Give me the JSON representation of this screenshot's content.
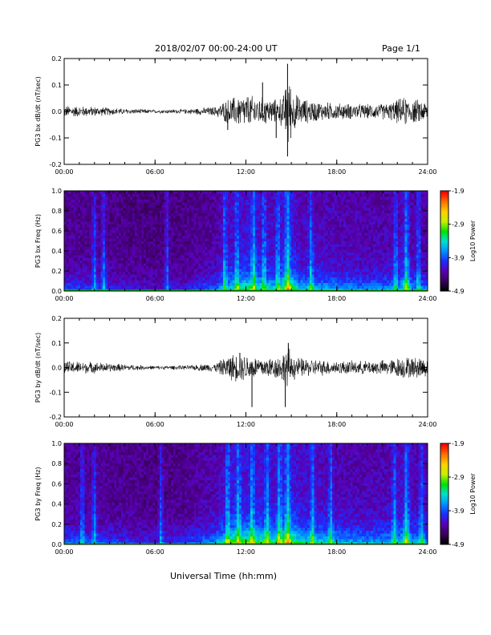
{
  "header": {
    "title": "2018/02/07  00:00-24:00 UT",
    "page": "Page 1/1"
  },
  "xlabel": "Universal Time (hh:mm)",
  "colors": {
    "trace": "#000000",
    "colormap": [
      "#000000",
      "#3a005c",
      "#5a00b4",
      "#1c2cff",
      "#0090ff",
      "#00e0d0",
      "#00e000",
      "#c8f000",
      "#ffd000",
      "#ff7000",
      "#ff0000"
    ]
  },
  "chart_data": [
    {
      "type": "line",
      "panel": "bx",
      "ylabel": "PG3 bx dB/dt (nT/sec)",
      "xlim": [
        0,
        24
      ],
      "ylim": [
        -0.2,
        0.2
      ],
      "xticks": [
        "00:00",
        "06:00",
        "12:00",
        "18:00",
        "24:00"
      ],
      "yticks": [
        "-0.2",
        "-0.1",
        "0.0",
        "0.1",
        "0.2"
      ],
      "grid": false,
      "envelope": {
        "hours": [
          0,
          2,
          4,
          6,
          8,
          10,
          10.5,
          11,
          12,
          13,
          14,
          14.5,
          14.8,
          15,
          15.5,
          16,
          17,
          18,
          20,
          21.5,
          22,
          22.5,
          23,
          23.5,
          24
        ],
        "amplitude": [
          0.025,
          0.02,
          0.012,
          0.008,
          0.01,
          0.02,
          0.04,
          0.06,
          0.07,
          0.06,
          0.05,
          0.07,
          0.17,
          0.1,
          0.06,
          0.05,
          0.04,
          0.035,
          0.03,
          0.035,
          0.05,
          0.06,
          0.05,
          0.05,
          0.04
        ]
      },
      "spikes": [
        {
          "t": 14.75,
          "y": 0.18
        },
        {
          "t": 14.75,
          "y": -0.17
        },
        {
          "t": 14.0,
          "y": -0.1
        },
        {
          "t": 10.8,
          "y": -0.07
        },
        {
          "t": 13.1,
          "y": 0.11
        }
      ]
    },
    {
      "type": "heatmap",
      "panel": "bx",
      "ylabel": "PG3 bx Freq (Hz)",
      "xlim": [
        0,
        24
      ],
      "ylim": [
        0,
        1
      ],
      "xticks": [
        "00:00",
        "06:00",
        "12:00",
        "18:00",
        "24:00"
      ],
      "yticks": [
        "0.0",
        "0.2",
        "0.4",
        "0.6",
        "0.8",
        "1.0"
      ],
      "colorbar": {
        "label": "Log10 Power",
        "range": [
          -4.9,
          -1.9
        ],
        "ticks": [
          "-1.9",
          "-2.9",
          "-3.9",
          "-4.9"
        ]
      },
      "activity": {
        "hours": [
          0,
          2,
          4,
          6,
          8,
          10,
          11,
          12,
          13,
          14,
          14.75,
          15.5,
          17,
          18,
          20,
          22,
          22.6,
          23,
          24
        ],
        "level": [
          0.35,
          0.3,
          0.25,
          0.2,
          0.25,
          0.4,
          0.65,
          0.75,
          0.7,
          0.6,
          0.95,
          0.6,
          0.55,
          0.5,
          0.45,
          0.5,
          0.7,
          0.5,
          0.45
        ]
      },
      "bursts": [
        2.0,
        2.6,
        6.8,
        10.6,
        11.4,
        12.5,
        13.2,
        14.1,
        14.75,
        16.3,
        21.9,
        22.6,
        23.4
      ]
    },
    {
      "type": "line",
      "panel": "by",
      "ylabel": "PG3 by dB/dt (nT/sec)",
      "xlim": [
        0,
        24
      ],
      "ylim": [
        -0.2,
        0.2
      ],
      "xticks": [
        "00:00",
        "06:00",
        "12:00",
        "18:00",
        "24:00"
      ],
      "yticks": [
        "-0.2",
        "-0.1",
        "0.0",
        "0.1",
        "0.2"
      ],
      "grid": false,
      "envelope": {
        "hours": [
          0,
          2,
          4,
          6,
          8,
          10,
          10.5,
          11,
          12,
          13,
          14,
          14.5,
          14.8,
          15,
          15.5,
          16,
          17,
          18,
          20,
          21.5,
          22,
          22.5,
          23,
          23.5,
          24
        ],
        "amplitude": [
          0.03,
          0.025,
          0.015,
          0.008,
          0.01,
          0.02,
          0.04,
          0.06,
          0.06,
          0.045,
          0.05,
          0.07,
          0.1,
          0.06,
          0.045,
          0.04,
          0.035,
          0.03,
          0.03,
          0.035,
          0.045,
          0.05,
          0.045,
          0.05,
          0.04
        ]
      },
      "spikes": [
        {
          "t": 14.8,
          "y": 0.1
        },
        {
          "t": 14.6,
          "y": -0.16
        },
        {
          "t": 12.4,
          "y": -0.16
        },
        {
          "t": 11.6,
          "y": 0.06
        }
      ]
    },
    {
      "type": "heatmap",
      "panel": "by",
      "ylabel": "PG3 by Freq (Hz)",
      "xlim": [
        0,
        24
      ],
      "ylim": [
        0,
        1
      ],
      "xticks": [
        "00:00",
        "06:00",
        "12:00",
        "18:00",
        "24:00"
      ],
      "yticks": [
        "0.0",
        "0.2",
        "0.4",
        "0.6",
        "0.8",
        "1.0"
      ],
      "colorbar": {
        "label": "Log10 Power",
        "range": [
          -4.9,
          -1.9
        ],
        "ticks": [
          "-1.9",
          "-2.9",
          "-3.9",
          "-4.9"
        ]
      },
      "activity": {
        "hours": [
          0,
          2,
          4,
          6,
          8,
          10,
          11,
          12,
          13,
          14,
          14.75,
          15.5,
          17,
          18,
          20,
          22,
          22.6,
          23,
          24
        ],
        "level": [
          0.4,
          0.35,
          0.3,
          0.25,
          0.3,
          0.5,
          0.8,
          0.8,
          0.75,
          0.7,
          0.95,
          0.7,
          0.6,
          0.55,
          0.5,
          0.55,
          0.75,
          0.55,
          0.5
        ]
      },
      "bursts": [
        1.2,
        2.0,
        6.4,
        10.8,
        11.5,
        12.4,
        13.4,
        14.2,
        14.75,
        16.4,
        17.6,
        21.8,
        22.6,
        23.6
      ]
    }
  ]
}
